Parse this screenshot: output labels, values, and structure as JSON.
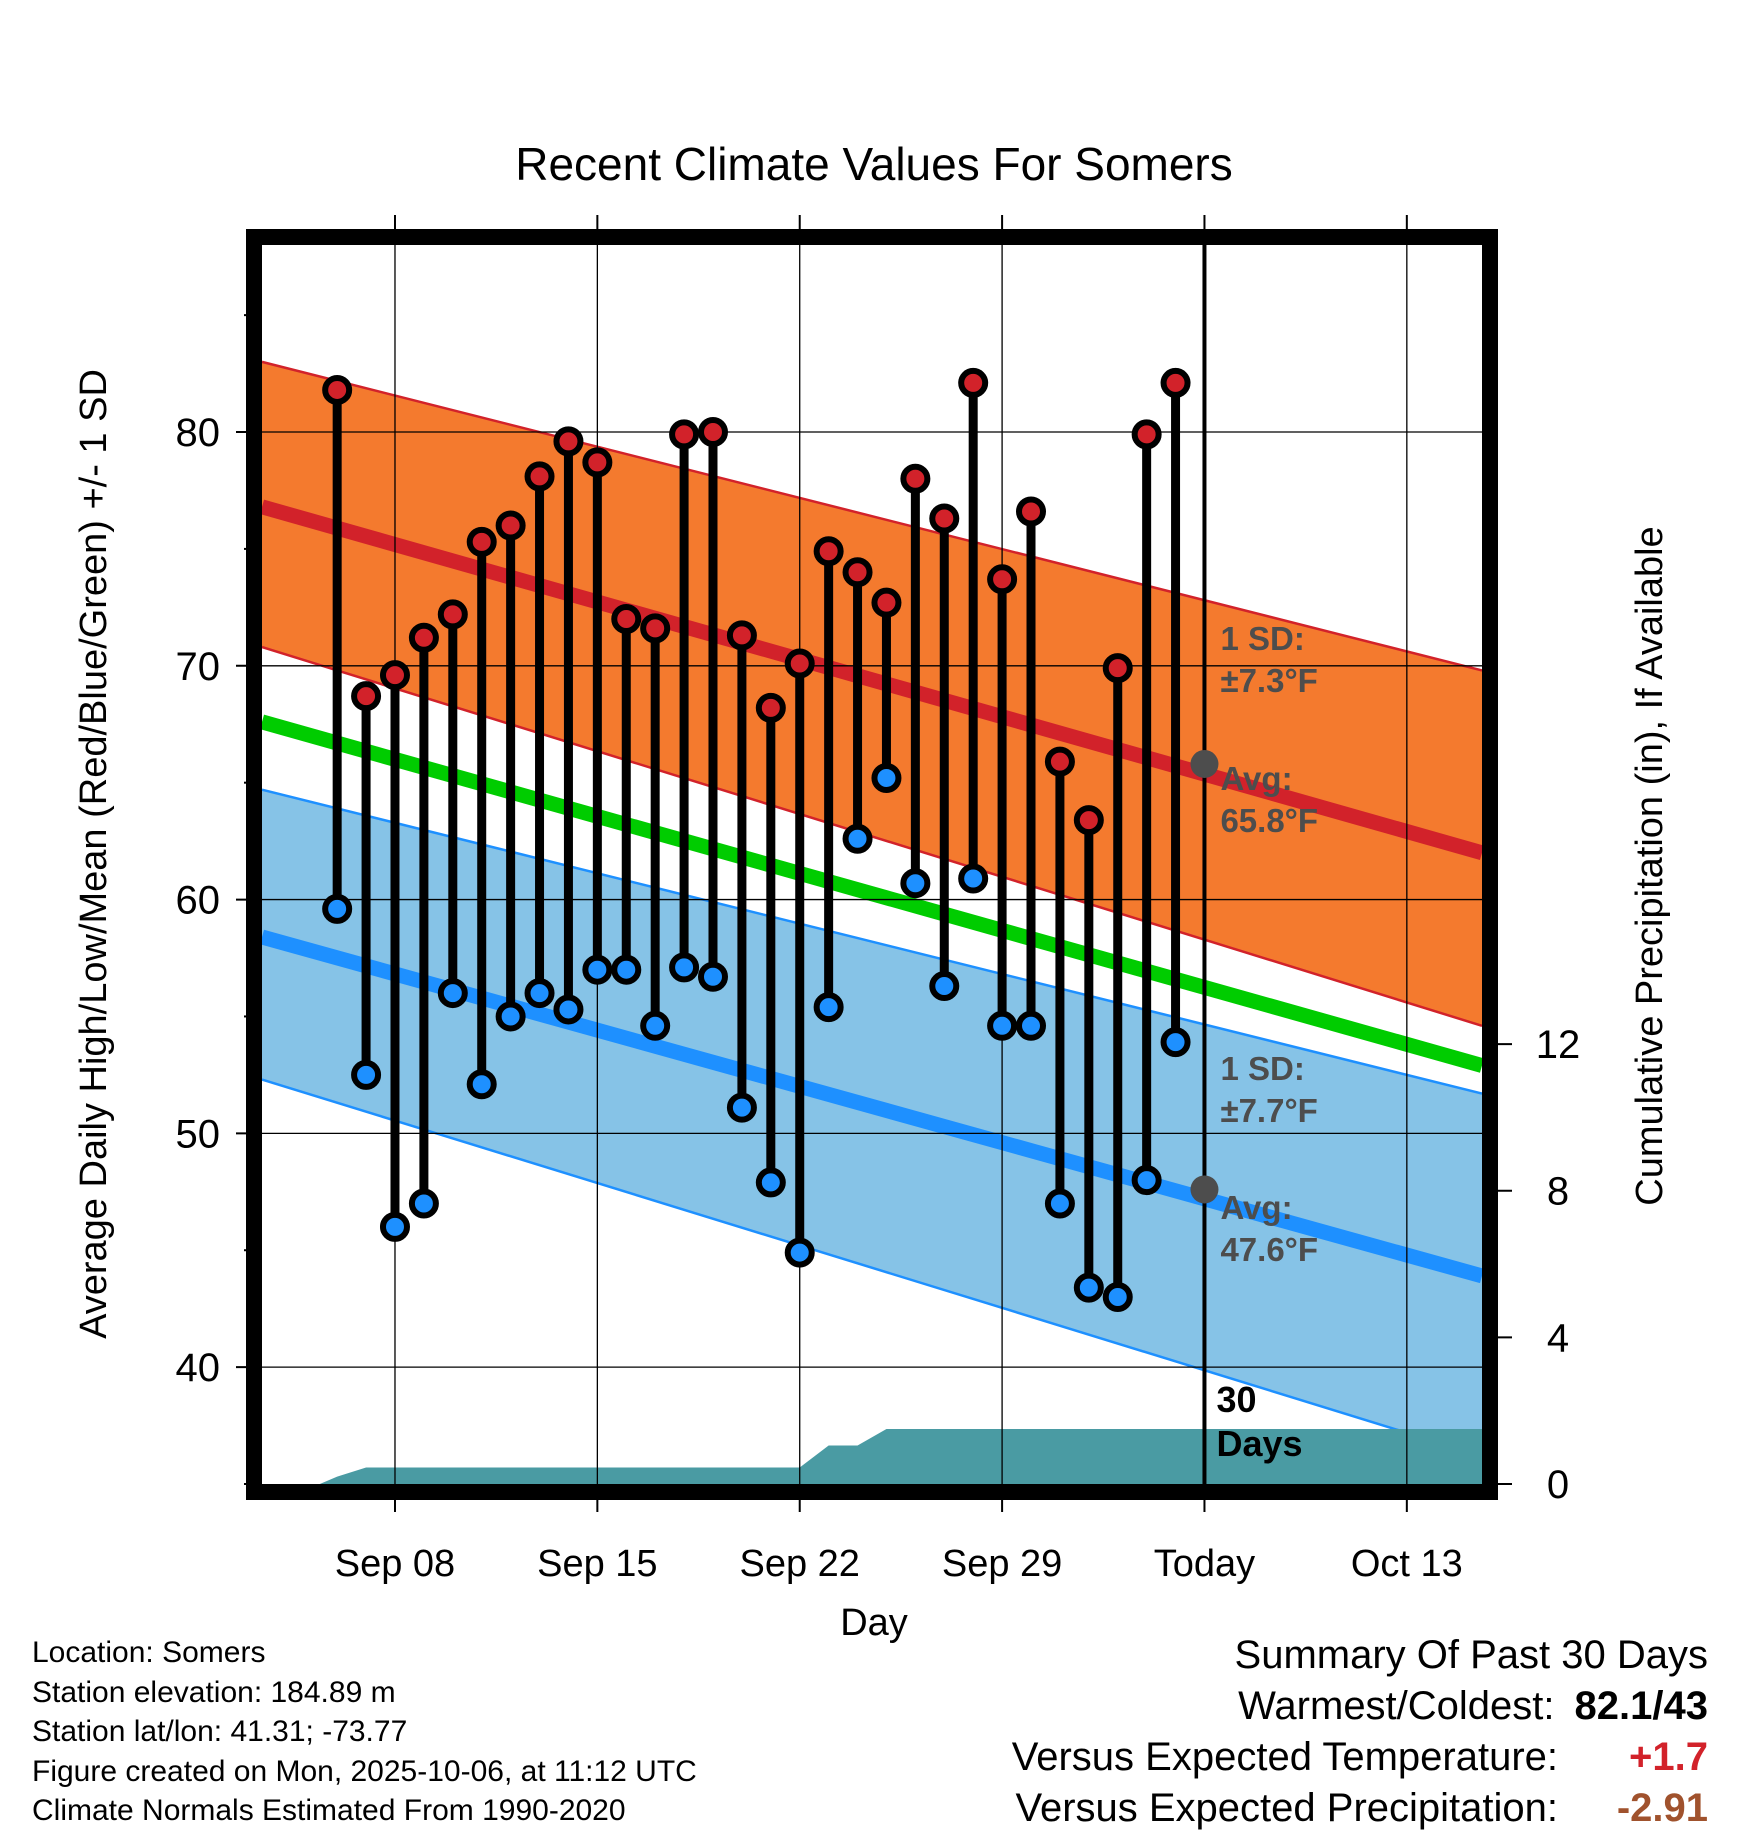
{
  "colors": {
    "high_band": "#f47a2e",
    "high_line": "#d2222a",
    "low_band": "#86c3e7",
    "low_line": "#1e90ff",
    "mean_line": "#00cc00",
    "precip": "#4a9ba3",
    "avg_marker": "#4d4d4d",
    "positive_anomaly": "#d2222a",
    "negative_anomaly": "#a0522d"
  },
  "chart_data": {
    "type": "line",
    "title": "Recent Climate Values For Somers",
    "xlabel": "Day",
    "ylabel": "Average Daily High/Low/Mean (Red/Blue/Green) +/- 1 SD",
    "y2label": "Cumulative Precipitation (in), If Available",
    "ylim": [
      35,
      88
    ],
    "y2lim": [
      0,
      33.8
    ],
    "y_ticks": [
      40,
      50,
      60,
      70,
      80
    ],
    "y2_ticks": [
      0,
      4,
      8,
      12
    ],
    "x_range_days": [
      -32.6,
      9.6
    ],
    "x_ticks": [
      {
        "day": -28,
        "label": "Sep 08"
      },
      {
        "day": -21,
        "label": "Sep 15"
      },
      {
        "day": -14,
        "label": "Sep 22"
      },
      {
        "day": -7,
        "label": "Sep 29"
      },
      {
        "day": 0,
        "label": "Today"
      },
      {
        "day": 7,
        "label": "Oct 13"
      }
    ],
    "normals": {
      "high_avg": {
        "start": 76.8,
        "end": 62.0
      },
      "high_upper": {
        "start": 83.0,
        "end": 69.8
      },
      "high_lower": {
        "start": 70.8,
        "end": 54.6
      },
      "low_avg": {
        "start": 58.4,
        "end": 43.9
      },
      "low_upper": {
        "start": 64.7,
        "end": 51.7
      },
      "low_lower": {
        "start": 52.3,
        "end": 36.2
      },
      "mean": {
        "start": 67.6,
        "end": 52.9
      }
    },
    "series": [
      {
        "name": "Daily High",
        "values": [
          81.8,
          68.7,
          69.6,
          71.2,
          72.2,
          75.3,
          76.0,
          78.1,
          79.6,
          78.7,
          72.0,
          71.6,
          79.9,
          80.0,
          71.3,
          68.2,
          70.1,
          74.9,
          74.0,
          72.7,
          78.0,
          76.3,
          82.1,
          73.7,
          76.6,
          65.9,
          63.4,
          69.9,
          79.9,
          82.1
        ]
      },
      {
        "name": "Daily Low",
        "values": [
          59.6,
          52.5,
          46.0,
          47.0,
          56.0,
          52.1,
          55.0,
          56.0,
          55.3,
          57.0,
          57.0,
          54.6,
          57.1,
          56.7,
          51.1,
          47.9,
          44.9,
          55.4,
          62.6,
          65.2,
          60.7,
          56.3,
          60.9,
          54.6,
          54.6,
          47.0,
          43.4,
          43.0,
          48.0,
          53.9
        ]
      }
    ],
    "first_day_offset": -30,
    "precip_cumulative": [
      {
        "day": -30.6,
        "value": 0.0
      },
      {
        "day": -30.0,
        "value": 0.2
      },
      {
        "day": -29.0,
        "value": 0.45
      },
      {
        "day": -14.0,
        "value": 0.45
      },
      {
        "day": -13.0,
        "value": 1.05
      },
      {
        "day": -12.0,
        "value": 1.05
      },
      {
        "day": -11.0,
        "value": 1.5
      },
      {
        "day": 9.6,
        "value": 1.5
      }
    ],
    "annotations": {
      "high_sd_label": "1 SD:",
      "high_sd_value": "±7.3°F",
      "high_avg_label": "Avg:",
      "high_avg_value": "65.8°F",
      "high_avg_point": 65.8,
      "low_sd_label": "1 SD:",
      "low_sd_value": "±7.7°F",
      "low_avg_label": "Avg:",
      "low_avg_value": "47.6°F",
      "low_avg_point": 47.6,
      "days_label_line1": "30",
      "days_label_line2": "Days"
    }
  },
  "info": {
    "location": "Location: Somers",
    "elevation": "Station elevation: 184.89 m",
    "latlon": "Station lat/lon: 41.31; -73.77",
    "created": "Figure created on Mon, 2025-10-06, at 11:12 UTC",
    "normals": "Climate Normals Estimated From 1990-2020"
  },
  "summary": {
    "title": "Summary Of Past 30 Days",
    "warm_cold_label": "Warmest/Coldest:",
    "warm_cold_value": "82.1/43",
    "temp_label": "Versus Expected Temperature:",
    "temp_value": "+1.7",
    "precip_label": "Versus Expected Precipitation:",
    "precip_value": "-2.91"
  }
}
